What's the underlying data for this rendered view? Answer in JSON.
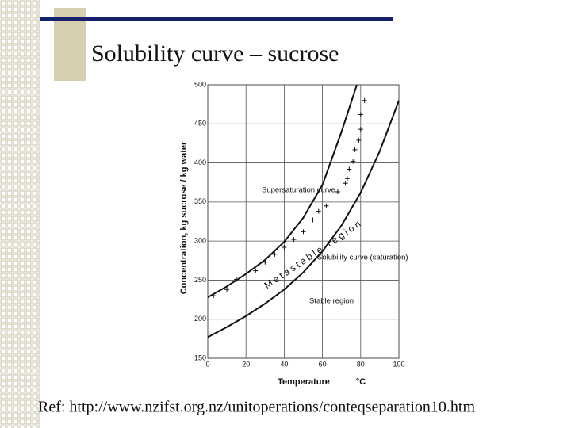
{
  "chart_data": {
    "type": "line",
    "title": "Solubility curve – sucrose",
    "xlabel": "Temperature",
    "xunit": "°C",
    "ylabel": "Concentration, kg sucrose / kg water",
    "xlim": [
      0,
      100
    ],
    "xticks": [
      0,
      20,
      40,
      60,
      80,
      100
    ],
    "ylim": [
      150,
      500
    ],
    "yticks": [
      150,
      200,
      250,
      300,
      350,
      400,
      450,
      500
    ],
    "grid": true,
    "series": [
      {
        "color": "#111111",
        "x": [
          0,
          10,
          20,
          30,
          40,
          50,
          60,
          70,
          80,
          90,
          100
        ],
        "values": [
          177,
          190,
          204,
          220,
          238,
          260,
          287,
          320,
          362,
          415,
          480
        ]
      },
      {
        "color": "#111111",
        "x": [
          0,
          10,
          20,
          30,
          40,
          50,
          60,
          70,
          78
        ],
        "values": [
          228,
          242,
          258,
          276,
          299,
          330,
          372,
          440,
          500
        ]
      }
    ],
    "points": {
      "color": "#111111",
      "x": [
        3,
        10,
        15,
        25,
        30,
        35,
        40,
        45,
        50,
        55,
        58,
        62,
        68,
        72,
        73,
        74,
        76,
        77,
        79,
        80,
        80,
        82
      ],
      "values": [
        230,
        238,
        251,
        262,
        273,
        283,
        292,
        302,
        312,
        327,
        338,
        345,
        363,
        374,
        380,
        392,
        402,
        417,
        429,
        443,
        462,
        480
      ]
    },
    "annotations": [
      "Supersaturation curve",
      "Metastable region",
      "Solubility curve (saturation)",
      "Stable region"
    ],
    "source": "Ref: http://www.nzifst.org.nz/unitoperations/conteqseparation10.htm"
  }
}
